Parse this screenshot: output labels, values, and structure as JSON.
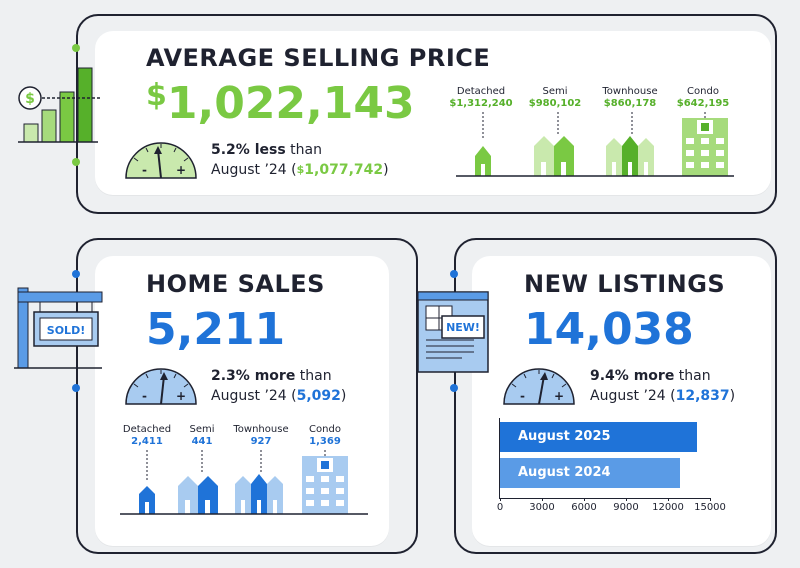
{
  "colors": {
    "green": "#7ac943",
    "green_dark": "#56b02a",
    "green_light": "#c9e9ad",
    "blue": "#1f73d8",
    "blue_mid": "#5a9be6",
    "blue_light": "#a8cbf0",
    "ink": "#1f2230"
  },
  "average_price": {
    "title": "AVERAGE SELLING PRICE",
    "currency_symbol": "$",
    "value": "1,022,143",
    "change_pct": "5.2% less",
    "than_text": "than",
    "prior_period": "August ’24 (",
    "prior_currency": "$",
    "prior_value": "1,077,742",
    "close_paren": ")",
    "gauge_minus": "-",
    "gauge_plus": "+",
    "types": [
      {
        "label": "Detached",
        "value": "$1,312,240"
      },
      {
        "label": "Semi",
        "value": "$980,102"
      },
      {
        "label": "Townhouse",
        "value": "$860,178"
      },
      {
        "label": "Condo",
        "value": "$642,195"
      }
    ],
    "icon": "dollar-bar-chart-icon"
  },
  "home_sales": {
    "title": "HOME SALES",
    "value": "5,211",
    "change_pct": "2.3% more",
    "than_text": "than",
    "prior_period": "August ’24 (",
    "prior_value": "5,092",
    "close_paren": ")",
    "gauge_minus": "-",
    "gauge_plus": "+",
    "sign_text": "SOLD!",
    "types": [
      {
        "label": "Detached",
        "value": "2,411"
      },
      {
        "label": "Semi",
        "value": "441"
      },
      {
        "label": "Townhouse",
        "value": "927"
      },
      {
        "label": "Condo",
        "value": "1,369"
      }
    ],
    "icon": "sold-sign-icon"
  },
  "new_listings": {
    "title": "NEW LISTINGS",
    "value": "14,038",
    "change_pct": "9.4% more",
    "than_text": "than",
    "prior_period": "August ’24 (",
    "prior_value": "12,837",
    "close_paren": ")",
    "gauge_minus": "-",
    "gauge_plus": "+",
    "badge_text": "NEW!",
    "icon": "new-listing-document-icon"
  },
  "chart_data": {
    "type": "bar",
    "orientation": "horizontal",
    "categories": [
      "August 2025",
      "August 2024"
    ],
    "values": [
      14038,
      12837
    ],
    "xlim": [
      0,
      15000
    ],
    "xticks": [
      "0",
      "3000",
      "6000",
      "9000",
      "12000",
      "15000"
    ],
    "title": "",
    "xlabel": "",
    "ylabel": "",
    "grid": false,
    "colors": [
      "#1f73d8",
      "#5a9be6"
    ]
  }
}
